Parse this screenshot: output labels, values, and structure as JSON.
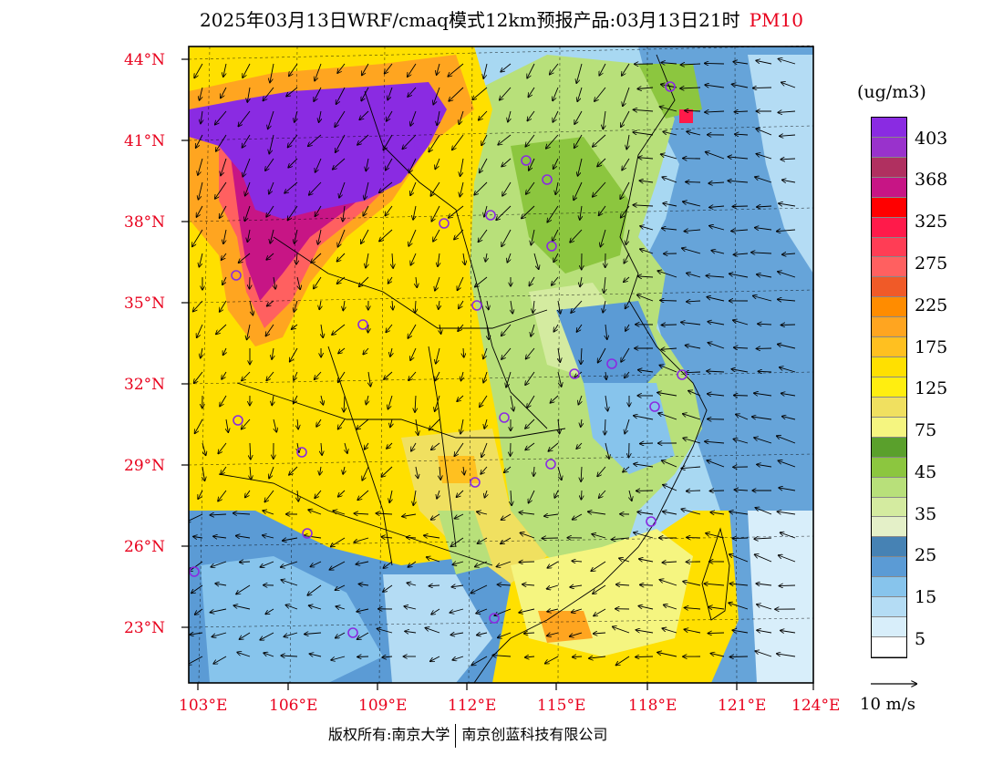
{
  "title": {
    "text": "2025年03月13日WRF/cmaq模式12km预报产品:03月13日21时",
    "variable": "PM10"
  },
  "axes": {
    "lat_labels": [
      "44°N",
      "41°N",
      "38°N",
      "35°N",
      "32°N",
      "29°N",
      "26°N",
      "23°N"
    ],
    "lon_labels": [
      "103°E",
      "106°E",
      "109°E",
      "112°E",
      "115°E",
      "118°E",
      "121°E",
      "124°E"
    ],
    "lat_values": [
      44,
      41,
      38,
      35,
      32,
      29,
      26,
      23
    ],
    "lon_values": [
      103,
      106,
      109,
      112,
      115,
      118,
      121,
      124
    ],
    "lat_range": [
      21,
      44.5
    ],
    "lon_range": [
      103,
      124
    ]
  },
  "legend": {
    "unit": "(ug/m3)",
    "labels": [
      "403",
      "368",
      "325",
      "275",
      "225",
      "175",
      "125",
      "75",
      "45",
      "35",
      "25",
      "15",
      "5"
    ],
    "colors_top_to_bottom": [
      "#8a2be2",
      "#9932cc",
      "#b03060",
      "#c71585",
      "#ff0000",
      "#ff1a4a",
      "#ff3d55",
      "#ff6060",
      "#f05a28",
      "#ff8c00",
      "#ffa520",
      "#ffc020",
      "#ffe000",
      "#ffee10",
      "#f0e060",
      "#f5f580",
      "#5aa02c",
      "#8cc63f",
      "#b8e07a",
      "#d4eba0",
      "#e4f0c8",
      "#4682b4",
      "#5b9bd5",
      "#87c4ec",
      "#b4dcf4",
      "#d8eefa",
      "#ffffff"
    ]
  },
  "wind": {
    "reference_label": "10 m/s"
  },
  "copyright": {
    "left": "版权所有:南京大学",
    "right": "南京创蓝科技有限公司"
  }
}
